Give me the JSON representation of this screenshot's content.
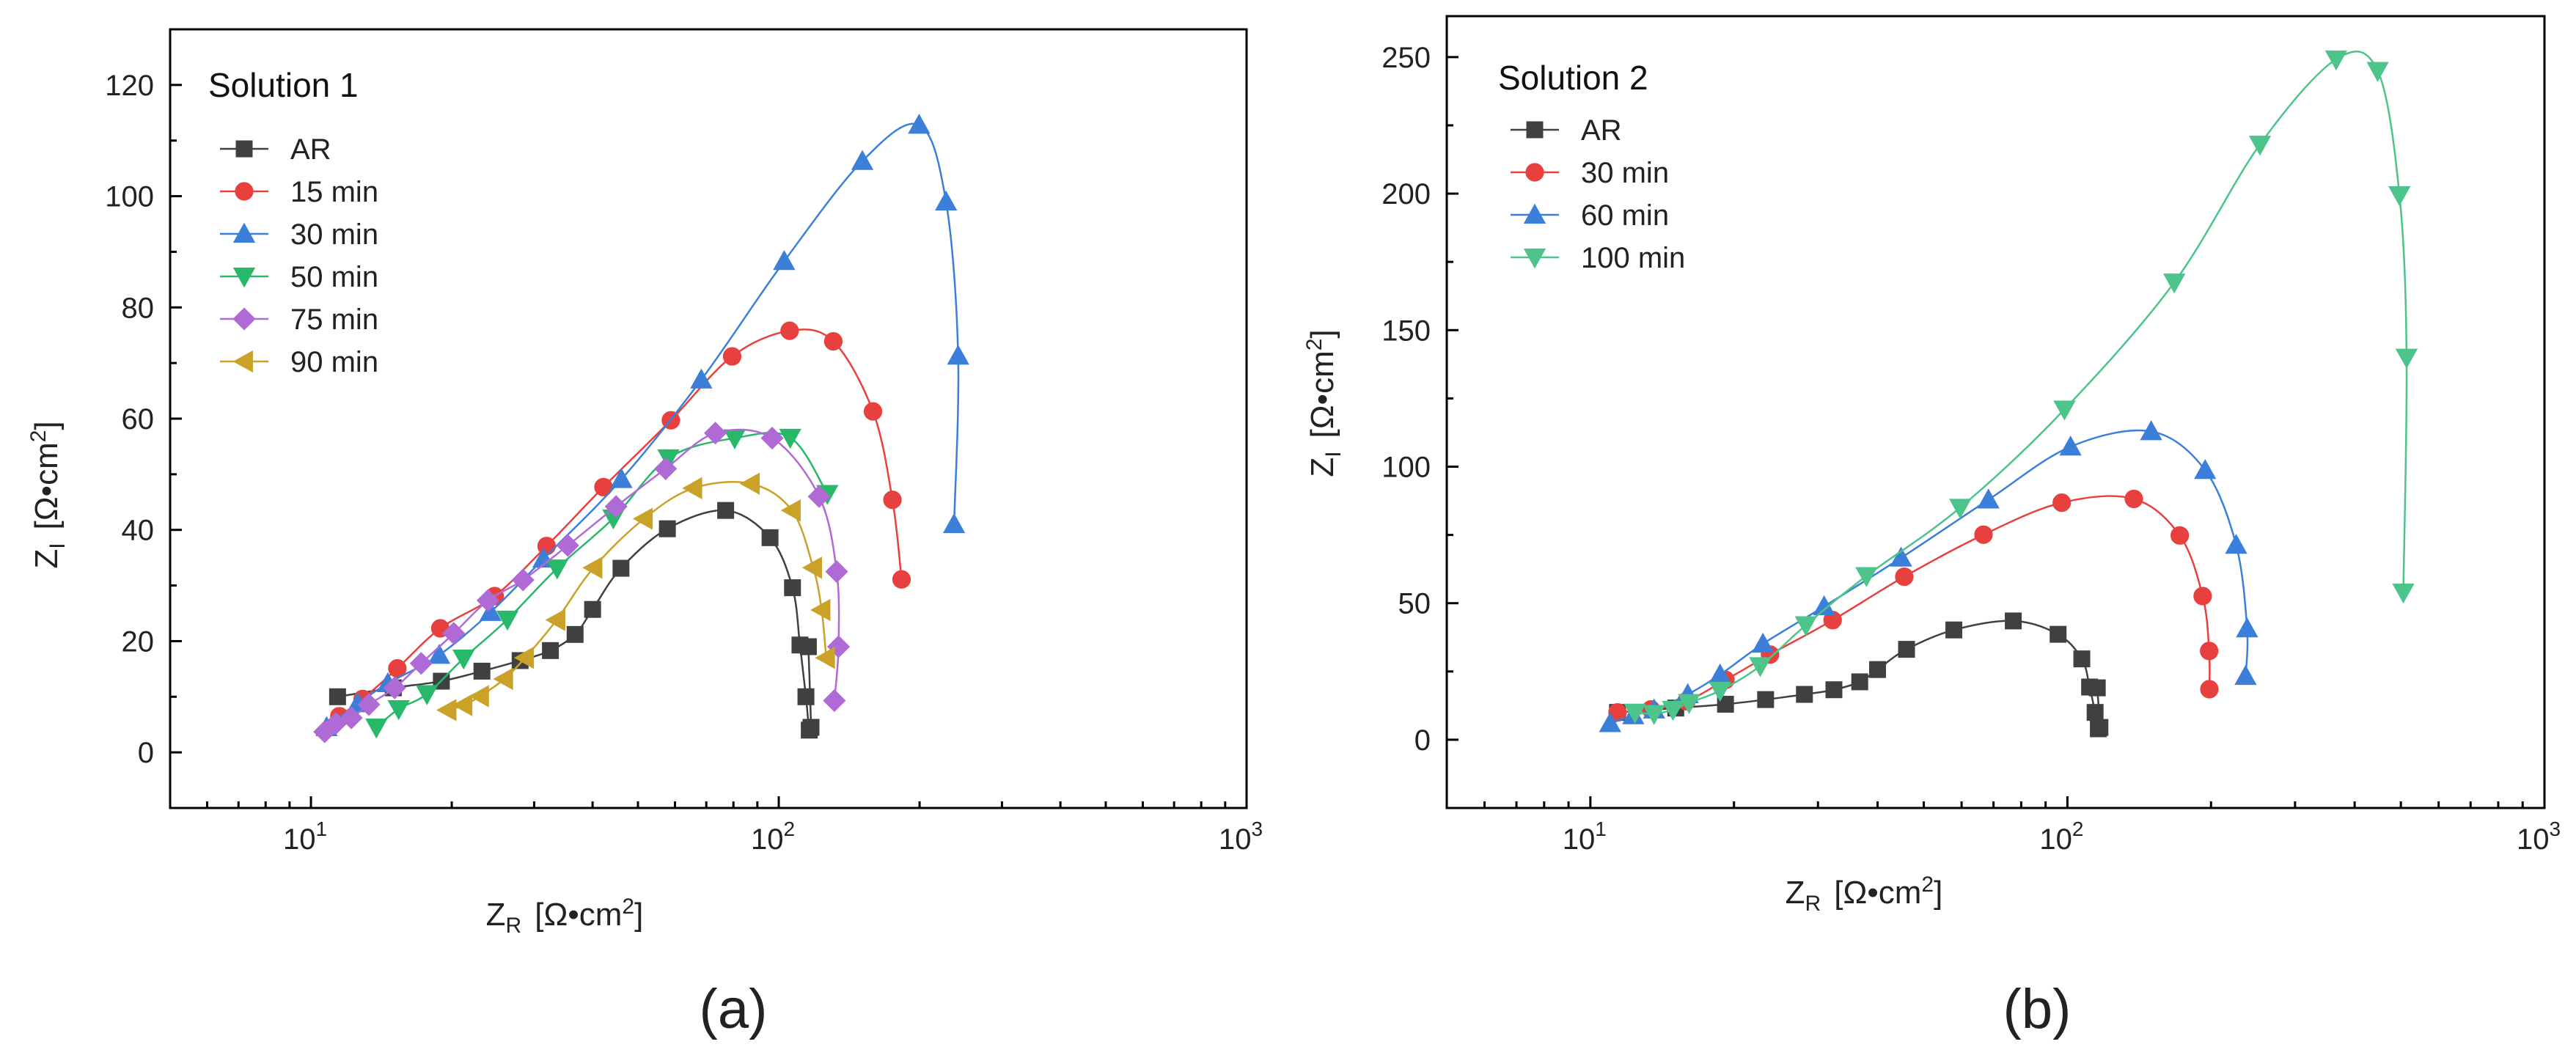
{
  "chart_data": [
    {
      "type": "scatter",
      "panel_label": "(a)",
      "legend_title": "Solution 1",
      "legend_position": "top-left",
      "xscale": "log",
      "xlim": [
        5,
        1000
      ],
      "ylim": [
        -10,
        130
      ],
      "xticks": [
        {
          "value": 10,
          "base": "10",
          "exp": "1"
        },
        {
          "value": 100,
          "base": "10",
          "exp": "2"
        },
        {
          "value": 1000,
          "base": "10",
          "exp": "3"
        }
      ],
      "yticks": [
        0,
        20,
        40,
        60,
        80,
        100,
        120
      ],
      "xlabel": {
        "main": "Z",
        "sub": "R",
        "unit_open": "[Ω•cm",
        "unit_sup": "2",
        "unit_close": "]"
      },
      "ylabel": {
        "main": "Z",
        "sub": "I",
        "unit_open": "[Ω•cm",
        "unit_sup": "2",
        "unit_close": "]"
      },
      "series": [
        {
          "name": "AR",
          "marker": "square",
          "color": "#404040",
          "x": [
            11.4,
            15.0,
            19.0,
            23.2,
            28.0,
            32.5,
            36.7,
            40.0,
            46.0,
            57.8,
            77.0,
            95.8,
            107.0,
            111.0,
            114.3,
            116.2,
            117.2,
            115.7
          ],
          "y": [
            10.0,
            11.6,
            12.8,
            14.6,
            16.5,
            18.3,
            21.2,
            25.7,
            33.1,
            40.2,
            43.5,
            38.6,
            29.6,
            19.3,
            10.0,
            4.0,
            4.5,
            19.0
          ]
        },
        {
          "name": "15 min",
          "marker": "circle",
          "color": "#e8403f",
          "x": [
            11.5,
            12.9,
            15.3,
            18.9,
            24.7,
            31.9,
            42.2,
            58.8,
            79.5,
            105.5,
            130.8,
            159.0,
            175.0,
            183.0
          ],
          "y": [
            6.5,
            9.6,
            15.1,
            22.3,
            28.1,
            37.1,
            47.7,
            59.7,
            71.2,
            75.8,
            73.9,
            61.3,
            45.4,
            31.1
          ]
        },
        {
          "name": "30 min",
          "marker": "triangle-up",
          "color": "#3b7fd9",
          "x": [
            10.8,
            12.6,
            14.6,
            18.8,
            24.2,
            31.4,
            46.1,
            68.3,
            102.7,
            150.9,
            199.5,
            227.8,
            241.8,
            237.0
          ],
          "y": [
            4.5,
            8.8,
            12.4,
            17.5,
            25.2,
            34.8,
            49.1,
            67.0,
            88.3,
            106.3,
            112.8,
            99.0,
            71.3,
            41.0
          ]
        },
        {
          "name": "50 min",
          "marker": "triangle-down",
          "color": "#27b86a",
          "x": [
            13.8,
            15.4,
            17.7,
            21.2,
            26.3,
            33.6,
            44.3,
            58.1,
            80.5,
            105.8,
            127.0
          ],
          "y": [
            4.5,
            7.8,
            10.5,
            16.9,
            23.9,
            33.1,
            42.1,
            52.9,
            56.5,
            56.6,
            46.5
          ]
        },
        {
          "name": "75 min",
          "marker": "diamond",
          "color": "#b06ad6",
          "x": [
            10.7,
            11.3,
            12.2,
            13.3,
            15.1,
            17.2,
            20.2,
            23.9,
            28.4,
            35.4,
            44.9,
            57.3,
            73.2,
            96.8,
            122.0,
            133.0,
            134.2,
            131.5
          ],
          "y": [
            3.7,
            5.2,
            6.2,
            8.6,
            11.6,
            16.0,
            21.4,
            27.3,
            31.0,
            37.2,
            44.2,
            51.0,
            57.4,
            56.5,
            46.0,
            32.5,
            19.0,
            9.3
          ]
        },
        {
          "name": "90 min",
          "marker": "triangle-left",
          "color": "#c9a227",
          "x": [
            19.6,
            21.2,
            23.0,
            25.9,
            28.7,
            33.5,
            40.2,
            51.5,
            65.7,
            87.2,
            106.7,
            118.5,
            123.5,
            126.3
          ],
          "y": [
            7.6,
            8.5,
            10.1,
            13.2,
            17.0,
            23.8,
            33.2,
            42.0,
            47.5,
            48.3,
            43.5,
            33.2,
            25.6,
            17.0
          ]
        }
      ]
    },
    {
      "type": "scatter",
      "panel_label": "(b)",
      "legend_title": "Solution 2",
      "legend_position": "top-left",
      "xscale": "log",
      "xlim": [
        5,
        1000
      ],
      "ylim": [
        -25,
        265
      ],
      "xticks": [
        {
          "value": 10,
          "base": "10",
          "exp": "1"
        },
        {
          "value": 100,
          "base": "10",
          "exp": "2"
        },
        {
          "value": 1000,
          "base": "10",
          "exp": "3"
        }
      ],
      "yticks": [
        0,
        50,
        100,
        150,
        200,
        250
      ],
      "xlabel": {
        "main": "Z",
        "sub": "R",
        "unit_open": "[Ω•cm",
        "unit_sup": "2",
        "unit_close": "]"
      },
      "ylabel": {
        "main": "Z",
        "sub": "I",
        "unit_open": "[Ω•cm",
        "unit_sup": "2",
        "unit_close": "]"
      },
      "series": [
        {
          "name": "AR",
          "marker": "square",
          "color": "#404040",
          "x": [
            11.4,
            15.1,
            19.2,
            23.3,
            28.1,
            32.4,
            36.7,
            40.0,
            46.0,
            57.8,
            77.0,
            95.6,
            107.2,
            111.3,
            114.3,
            116.1,
            117.0,
            115.5
          ],
          "y": [
            10.0,
            11.6,
            13.0,
            14.7,
            16.6,
            18.3,
            21.2,
            25.7,
            33.1,
            40.2,
            43.5,
            38.6,
            29.6,
            19.3,
            10.0,
            4.0,
            4.5,
            19.0
          ]
        },
        {
          "name": "30 min",
          "marker": "circle",
          "color": "#e8403f",
          "x": [
            11.4,
            13.4,
            15.9,
            19.2,
            23.8,
            32.2,
            45.5,
            66.7,
            97.3,
            137.8,
            172.0,
            192.1,
            198.2,
            198.4
          ],
          "y": [
            10.0,
            11.1,
            14.1,
            21.9,
            31.2,
            43.8,
            59.7,
            75.1,
            86.8,
            88.2,
            74.8,
            52.6,
            32.5,
            18.5
          ]
        },
        {
          "name": "60 min",
          "marker": "triangle-up",
          "color": "#3b7fd9",
          "x": [
            11.0,
            12.3,
            13.6,
            16.0,
            18.7,
            23.0,
            30.9,
            44.8,
            68.3,
            101.5,
            149.8,
            194.4,
            225.8,
            238.0,
            236.3
          ],
          "y": [
            6.0,
            8.9,
            11.0,
            16.6,
            23.8,
            35.1,
            48.8,
            66.6,
            87.9,
            107.3,
            112.9,
            98.7,
            71.3,
            40.7,
            23.3
          ]
        },
        {
          "name": "100 min",
          "marker": "triangle-down",
          "color": "#4cc48a",
          "x": [
            12.4,
            13.6,
            14.9,
            16.1,
            18.7,
            22.7,
            28.3,
            37.9,
            59.6,
            98.6,
            167.5,
            253.3,
            365.8,
            447.1,
            496.6,
            514.0,
            506.0
          ],
          "y": [
            10.0,
            9.5,
            11.0,
            13.5,
            18.0,
            27.0,
            42.0,
            60.0,
            85.0,
            121.0,
            167.5,
            218.0,
            249.2,
            245.0,
            199.5,
            140.0,
            54.0
          ]
        }
      ]
    }
  ]
}
